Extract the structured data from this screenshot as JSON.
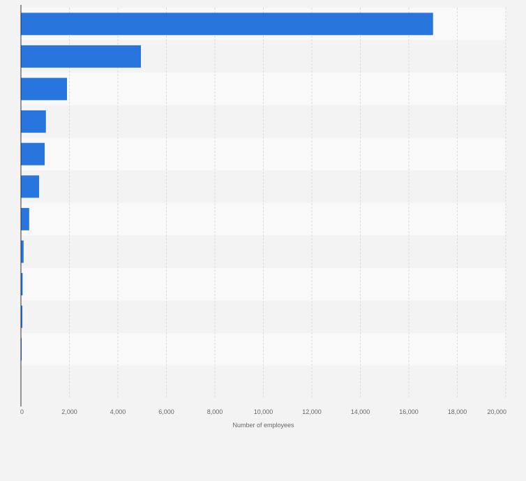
{
  "chart_data": {
    "type": "bar",
    "orientation": "horizontal",
    "categories": [
      "",
      "",
      "",
      "",
      "",
      "",
      "",
      "",
      "",
      "",
      "",
      ""
    ],
    "values": [
      17000,
      4950,
      1900,
      1030,
      980,
      750,
      340,
      110,
      70,
      60,
      30,
      0
    ],
    "title": "",
    "xlabel": "Number of employees",
    "ylabel": "",
    "xlim": [
      0,
      20000
    ],
    "xticks": [
      "0",
      "2,000",
      "4,000",
      "6,000",
      "8,000",
      "10,000",
      "12,000",
      "14,000",
      "16,000",
      "18,000",
      "20,000"
    ],
    "grid": true,
    "bar_color": "#2876dd",
    "band_colors": [
      "#f9f9f9",
      "#f3f3f3"
    ],
    "background_color": "#f3f3f3"
  }
}
